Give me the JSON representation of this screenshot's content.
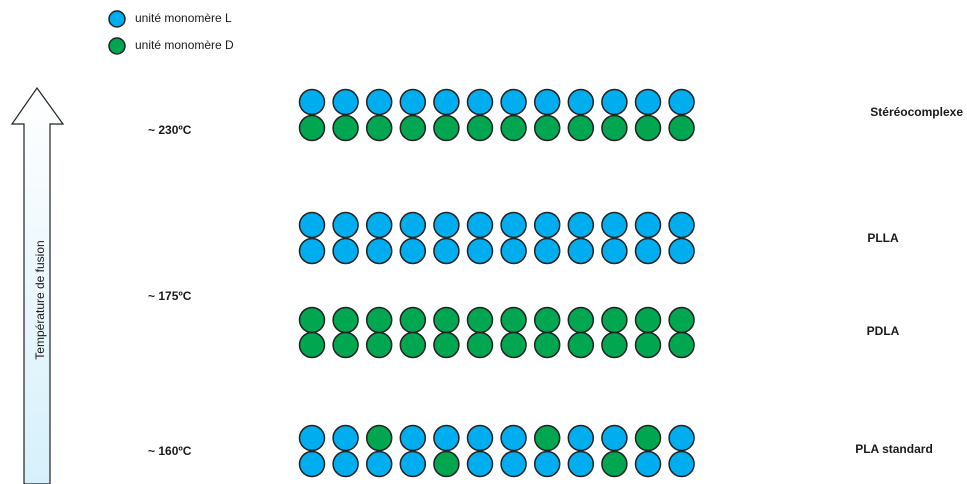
{
  "legend": [
    {
      "label": "unité monomère L"
    },
    {
      "label": "unité monomère D"
    }
  ],
  "axis_label": "Température de fusion",
  "temperatures": [
    "~ 230ºC",
    "~ 175ºC",
    "~ 160ºC"
  ],
  "structures": [
    "Stéréocomplexe",
    "PLLA",
    "PDLA",
    "PLA standard"
  ]
}
